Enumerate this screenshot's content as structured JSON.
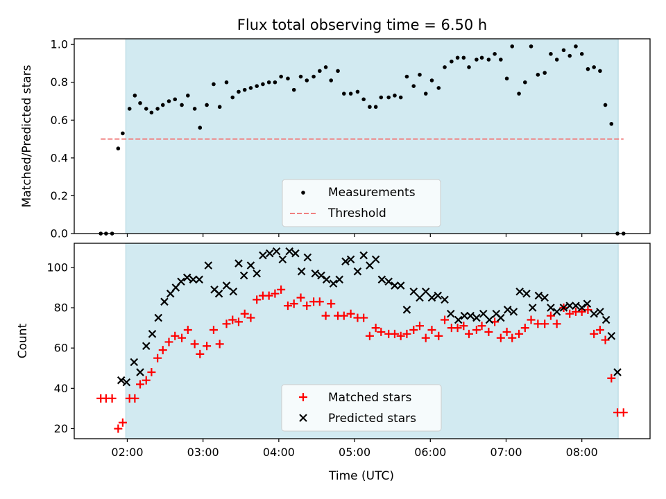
{
  "colors": {
    "shade": "#add8e6",
    "measurement": "#000000",
    "threshold": "#f08080",
    "matched": "#ff0000",
    "predicted": "#000000"
  },
  "chart_data": [
    {
      "type": "scatter",
      "title": "Flux total observing time = 6.50 h",
      "xlabel": "",
      "ylabel": "Matched/Predicted stars",
      "xlim": [
        1.3,
        8.9
      ],
      "ylim": [
        0.0,
        1.03
      ],
      "xticks": [
        2,
        3,
        4,
        5,
        6,
        7,
        8
      ],
      "xtick_labels": [
        "02:00",
        "03:00",
        "04:00",
        "05:00",
        "06:00",
        "07:00",
        "08:00"
      ],
      "yticks": [
        0.0,
        0.2,
        0.4,
        0.6,
        0.8,
        1.0
      ],
      "ytick_labels": [
        "0.0",
        "0.2",
        "0.4",
        "0.6",
        "0.8",
        "1.0"
      ],
      "observing_window": [
        1.98,
        8.48
      ],
      "threshold": 0.5,
      "threshold_x": [
        1.65,
        8.55
      ],
      "legend_position": "lower center",
      "legend": [
        "Measurements",
        "Threshold"
      ],
      "series": [
        {
          "name": "Measurements",
          "x": [
            1.65,
            1.72,
            1.8,
            1.88,
            1.94,
            2.03,
            2.1,
            2.17,
            2.25,
            2.32,
            2.4,
            2.47,
            2.55,
            2.63,
            2.72,
            2.8,
            2.89,
            2.96,
            3.05,
            3.14,
            3.22,
            3.31,
            3.39,
            3.47,
            3.55,
            3.63,
            3.71,
            3.79,
            3.87,
            3.95,
            4.03,
            4.12,
            4.2,
            4.29,
            4.37,
            4.46,
            4.54,
            4.62,
            4.69,
            4.78,
            4.86,
            4.95,
            5.04,
            5.12,
            5.2,
            5.28,
            5.35,
            5.45,
            5.53,
            5.61,
            5.69,
            5.78,
            5.86,
            5.94,
            6.02,
            6.11,
            6.19,
            6.28,
            6.36,
            6.44,
            6.51,
            6.61,
            6.68,
            6.77,
            6.85,
            6.93,
            7.01,
            7.08,
            7.17,
            7.25,
            7.33,
            7.42,
            7.51,
            7.59,
            7.67,
            7.76,
            7.84,
            7.92,
            8.0,
            8.08,
            8.16,
            8.24,
            8.31,
            8.39,
            8.47,
            8.55
          ],
          "y": [
            0.0,
            0.0,
            0.0,
            0.45,
            0.53,
            0.66,
            0.73,
            0.69,
            0.66,
            0.64,
            0.66,
            0.68,
            0.7,
            0.71,
            0.68,
            0.73,
            0.66,
            0.56,
            0.68,
            0.79,
            0.67,
            0.8,
            0.72,
            0.75,
            0.76,
            0.77,
            0.78,
            0.79,
            0.8,
            0.8,
            0.83,
            0.82,
            0.76,
            0.83,
            0.81,
            0.83,
            0.86,
            0.88,
            0.81,
            0.86,
            0.74,
            0.74,
            0.75,
            0.71,
            0.67,
            0.67,
            0.72,
            0.72,
            0.73,
            0.72,
            0.83,
            0.78,
            0.84,
            0.74,
            0.81,
            0.77,
            0.88,
            0.91,
            0.93,
            0.93,
            0.88,
            0.92,
            0.93,
            0.92,
            0.95,
            0.92,
            0.82,
            0.99,
            0.74,
            0.8,
            0.99,
            0.84,
            0.85,
            0.95,
            0.92,
            0.97,
            0.94,
            0.99,
            0.95,
            0.87,
            0.88,
            0.86,
            0.68,
            0.58,
            0.0,
            0.0
          ]
        }
      ]
    },
    {
      "type": "scatter",
      "title": "",
      "xlabel": "Time (UTC)",
      "ylabel": "Count",
      "xlim": [
        1.3,
        8.9
      ],
      "ylim": [
        15,
        112
      ],
      "xticks": [
        2,
        3,
        4,
        5,
        6,
        7,
        8
      ],
      "xtick_labels": [
        "02:00",
        "03:00",
        "04:00",
        "05:00",
        "06:00",
        "07:00",
        "08:00"
      ],
      "yticks": [
        20,
        40,
        60,
        80,
        100
      ],
      "ytick_labels": [
        "20",
        "40",
        "60",
        "80",
        "100"
      ],
      "observing_window": [
        1.98,
        8.48
      ],
      "legend_position": "lower center",
      "legend": [
        "Matched stars",
        "Predicted stars"
      ],
      "series": [
        {
          "name": "Matched stars",
          "x": [
            1.65,
            1.72,
            1.8,
            1.88,
            1.94,
            2.03,
            2.1,
            2.17,
            2.25,
            2.32,
            2.4,
            2.47,
            2.55,
            2.63,
            2.72,
            2.8,
            2.89,
            2.96,
            3.05,
            3.14,
            3.22,
            3.31,
            3.39,
            3.47,
            3.55,
            3.63,
            3.71,
            3.79,
            3.87,
            3.95,
            4.03,
            4.12,
            4.2,
            4.29,
            4.37,
            4.46,
            4.54,
            4.62,
            4.69,
            4.78,
            4.86,
            4.95,
            5.04,
            5.12,
            5.2,
            5.28,
            5.35,
            5.45,
            5.53,
            5.61,
            5.69,
            5.78,
            5.86,
            5.94,
            6.02,
            6.11,
            6.19,
            6.28,
            6.36,
            6.44,
            6.51,
            6.61,
            6.68,
            6.77,
            6.85,
            6.93,
            7.01,
            7.08,
            7.17,
            7.25,
            7.33,
            7.42,
            7.51,
            7.59,
            7.67,
            7.76,
            7.84,
            7.92,
            8.0,
            8.08,
            8.16,
            8.24,
            8.31,
            8.39,
            8.47,
            8.55
          ],
          "y": [
            35,
            35,
            35,
            20,
            23,
            35,
            35,
            42,
            44,
            48,
            55,
            59,
            63,
            66,
            65,
            69,
            62,
            57,
            61,
            69,
            62,
            72,
            74,
            73,
            77,
            75,
            84,
            86,
            86,
            87,
            89,
            81,
            82,
            85,
            81,
            83,
            83,
            76,
            82,
            76,
            76,
            77,
            75,
            75,
            66,
            70,
            68,
            67,
            67,
            66,
            67,
            69,
            71,
            65,
            69,
            66,
            74,
            70,
            70,
            71,
            67,
            69,
            71,
            68,
            73,
            65,
            68,
            65,
            67,
            70,
            74,
            72,
            72,
            76,
            72,
            80,
            77,
            78,
            78,
            79,
            67,
            69,
            64,
            45,
            28,
            28
          ]
        },
        {
          "name": "Predicted stars",
          "x": [
            1.92,
            1.99,
            2.09,
            2.17,
            2.25,
            2.33,
            2.41,
            2.49,
            2.57,
            2.64,
            2.71,
            2.79,
            2.87,
            2.95,
            3.07,
            3.15,
            3.21,
            3.31,
            3.4,
            3.47,
            3.54,
            3.63,
            3.71,
            3.79,
            3.88,
            3.97,
            4.05,
            4.14,
            4.22,
            4.3,
            4.38,
            4.48,
            4.56,
            4.63,
            4.72,
            4.8,
            4.88,
            4.95,
            5.04,
            5.12,
            5.2,
            5.28,
            5.36,
            5.45,
            5.53,
            5.61,
            5.69,
            5.78,
            5.86,
            5.94,
            6.02,
            6.1,
            6.19,
            6.27,
            6.37,
            6.45,
            6.53,
            6.61,
            6.7,
            6.78,
            6.87,
            6.93,
            7.02,
            7.1,
            7.18,
            7.27,
            7.35,
            7.43,
            7.51,
            7.59,
            7.67,
            7.76,
            7.84,
            7.92,
            8.0,
            8.07,
            8.16,
            8.24,
            8.32,
            8.39,
            8.47
          ],
          "y": [
            44,
            43,
            53,
            48,
            61,
            67,
            75,
            83,
            87,
            90,
            93,
            95,
            94,
            94,
            101,
            89,
            87,
            91,
            88,
            102,
            96,
            101,
            97,
            106,
            107,
            108,
            104,
            108,
            107,
            98,
            105,
            97,
            96,
            94,
            92,
            94,
            103,
            104,
            98,
            106,
            101,
            104,
            94,
            93,
            91,
            91,
            79,
            88,
            85,
            88,
            85,
            86,
            84,
            77,
            74,
            76,
            76,
            75,
            77,
            74,
            77,
            75,
            79,
            78,
            88,
            87,
            80,
            86,
            85,
            80,
            78,
            80,
            81,
            81,
            80,
            82,
            77,
            78,
            74,
            66,
            48
          ]
        }
      ]
    }
  ]
}
